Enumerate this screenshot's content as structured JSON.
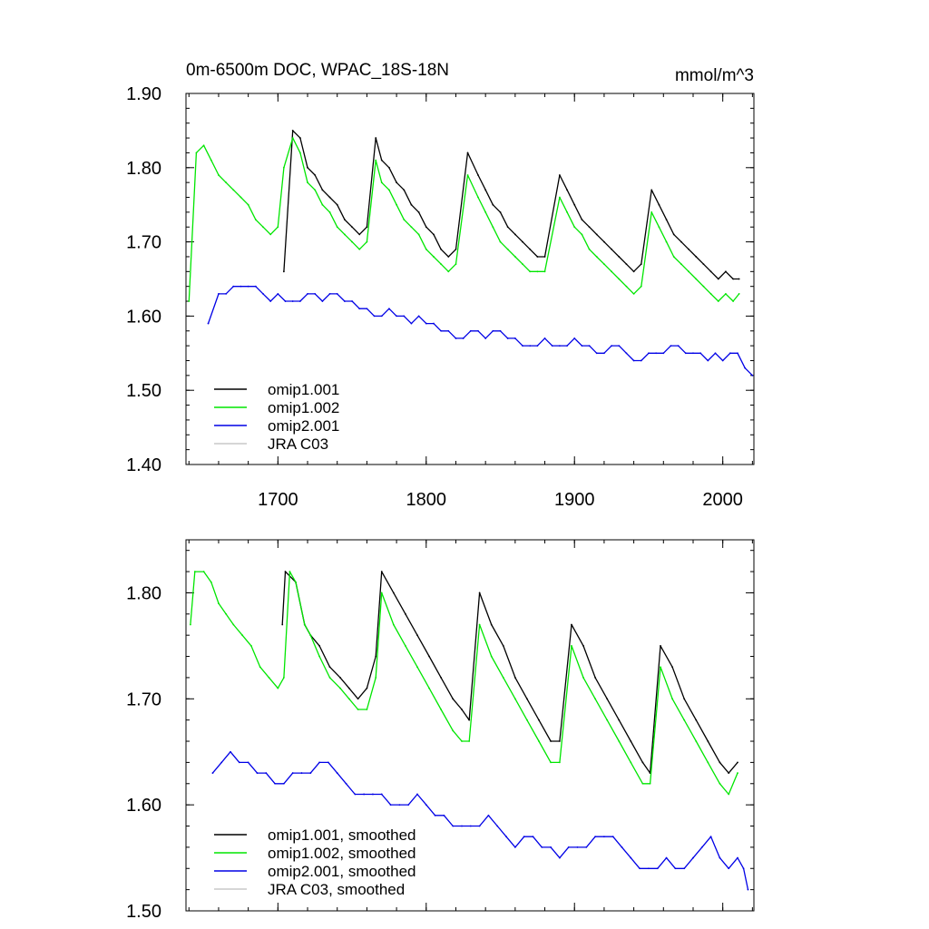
{
  "chart_data": [
    {
      "type": "line",
      "title": "0m-6500m DOC, WPAC_18S-18N",
      "units": "mmol/m^3",
      "xlabel": "",
      "ylabel": "",
      "xlim": [
        1638,
        2021
      ],
      "ylim": [
        1.4,
        1.9
      ],
      "xticks": [
        1700,
        1800,
        1900,
        2000
      ],
      "xtick_labels": [
        "1700",
        "1800",
        "1900",
        "2000"
      ],
      "yticks": [
        1.4,
        1.5,
        1.6,
        1.7,
        1.8,
        1.9
      ],
      "ytick_labels": [
        "1.40",
        "1.50",
        "1.60",
        "1.70",
        "1.80",
        "1.90"
      ],
      "legend_position": "bottom-left",
      "series": [
        {
          "name": "omip1.001",
          "color": "#000000",
          "x": [
            1704,
            1710,
            1715,
            1720,
            1725,
            1730,
            1735,
            1740,
            1745,
            1750,
            1755,
            1760,
            1766,
            1770,
            1775,
            1780,
            1785,
            1790,
            1795,
            1800,
            1805,
            1810,
            1815,
            1820,
            1828,
            1835,
            1840,
            1845,
            1850,
            1855,
            1860,
            1865,
            1870,
            1875,
            1880,
            1890,
            1895,
            1900,
            1905,
            1910,
            1915,
            1920,
            1925,
            1930,
            1935,
            1940,
            1945,
            1952,
            1957,
            1962,
            1967,
            1972,
            1977,
            1982,
            1987,
            1992,
            1997,
            2002,
            2007,
            2011
          ],
          "values": [
            1.66,
            1.85,
            1.84,
            1.8,
            1.79,
            1.77,
            1.76,
            1.75,
            1.73,
            1.72,
            1.71,
            1.72,
            1.84,
            1.81,
            1.8,
            1.78,
            1.77,
            1.75,
            1.74,
            1.72,
            1.71,
            1.69,
            1.68,
            1.69,
            1.82,
            1.79,
            1.77,
            1.75,
            1.74,
            1.72,
            1.71,
            1.7,
            1.69,
            1.68,
            1.68,
            1.79,
            1.77,
            1.75,
            1.73,
            1.72,
            1.71,
            1.7,
            1.69,
            1.68,
            1.67,
            1.66,
            1.67,
            1.77,
            1.75,
            1.73,
            1.71,
            1.7,
            1.69,
            1.68,
            1.67,
            1.66,
            1.65,
            1.66,
            1.65,
            1.65
          ]
        },
        {
          "name": "omip1.002",
          "color": "#00e600",
          "x": [
            1640,
            1645,
            1650,
            1655,
            1660,
            1665,
            1670,
            1675,
            1680,
            1685,
            1690,
            1695,
            1700,
            1704,
            1710,
            1715,
            1720,
            1725,
            1730,
            1735,
            1740,
            1745,
            1750,
            1755,
            1760,
            1766,
            1770,
            1775,
            1780,
            1785,
            1790,
            1795,
            1800,
            1805,
            1810,
            1815,
            1820,
            1828,
            1835,
            1840,
            1845,
            1850,
            1855,
            1860,
            1865,
            1870,
            1875,
            1880,
            1890,
            1895,
            1900,
            1905,
            1910,
            1915,
            1920,
            1925,
            1930,
            1935,
            1940,
            1945,
            1952,
            1957,
            1962,
            1967,
            1972,
            1977,
            1982,
            1987,
            1992,
            1997,
            2002,
            2007,
            2011
          ],
          "values": [
            1.62,
            1.82,
            1.83,
            1.81,
            1.79,
            1.78,
            1.77,
            1.76,
            1.75,
            1.73,
            1.72,
            1.71,
            1.72,
            1.8,
            1.84,
            1.82,
            1.78,
            1.77,
            1.75,
            1.74,
            1.72,
            1.71,
            1.7,
            1.69,
            1.7,
            1.81,
            1.78,
            1.77,
            1.75,
            1.73,
            1.72,
            1.71,
            1.69,
            1.68,
            1.67,
            1.66,
            1.67,
            1.79,
            1.76,
            1.74,
            1.72,
            1.7,
            1.69,
            1.68,
            1.67,
            1.66,
            1.66,
            1.66,
            1.76,
            1.74,
            1.72,
            1.71,
            1.69,
            1.68,
            1.67,
            1.66,
            1.65,
            1.64,
            1.63,
            1.64,
            1.74,
            1.72,
            1.7,
            1.68,
            1.67,
            1.66,
            1.65,
            1.64,
            1.63,
            1.62,
            1.63,
            1.62,
            1.63
          ]
        },
        {
          "name": "omip2.001",
          "color": "#0000e6",
          "x": [
            1653,
            1660,
            1665,
            1670,
            1675,
            1680,
            1685,
            1690,
            1695,
            1700,
            1705,
            1710,
            1715,
            1720,
            1725,
            1730,
            1735,
            1740,
            1745,
            1750,
            1755,
            1760,
            1765,
            1770,
            1775,
            1780,
            1785,
            1790,
            1795,
            1800,
            1805,
            1810,
            1815,
            1820,
            1825,
            1830,
            1835,
            1840,
            1845,
            1850,
            1855,
            1860,
            1865,
            1870,
            1875,
            1880,
            1885,
            1890,
            1895,
            1900,
            1905,
            1910,
            1915,
            1920,
            1925,
            1930,
            1935,
            1940,
            1945,
            1950,
            1955,
            1960,
            1965,
            1970,
            1975,
            1980,
            1985,
            1990,
            1995,
            2000,
            2005,
            2010,
            2015,
            2020
          ],
          "values": [
            1.59,
            1.63,
            1.63,
            1.64,
            1.64,
            1.64,
            1.64,
            1.63,
            1.62,
            1.63,
            1.62,
            1.62,
            1.62,
            1.63,
            1.63,
            1.62,
            1.63,
            1.63,
            1.62,
            1.62,
            1.61,
            1.61,
            1.6,
            1.6,
            1.61,
            1.6,
            1.6,
            1.59,
            1.6,
            1.59,
            1.59,
            1.58,
            1.58,
            1.57,
            1.57,
            1.58,
            1.58,
            1.57,
            1.58,
            1.58,
            1.57,
            1.57,
            1.56,
            1.56,
            1.56,
            1.57,
            1.56,
            1.56,
            1.56,
            1.57,
            1.56,
            1.56,
            1.55,
            1.55,
            1.56,
            1.56,
            1.55,
            1.54,
            1.54,
            1.55,
            1.55,
            1.55,
            1.56,
            1.56,
            1.55,
            1.55,
            1.55,
            1.54,
            1.55,
            1.54,
            1.55,
            1.55,
            1.53,
            1.52
          ]
        },
        {
          "name": "JRA C03",
          "color": "#c8c8c8",
          "x": [],
          "values": []
        }
      ]
    },
    {
      "type": "line",
      "title": "",
      "xlabel": "",
      "ylabel": "",
      "xlim": [
        1638,
        2021
      ],
      "ylim": [
        1.5,
        1.85
      ],
      "xticks": [
        1700,
        1800,
        1900,
        2000
      ],
      "yticks": [
        1.5,
        1.6,
        1.7,
        1.8
      ],
      "ytick_labels": [
        "1.50",
        "1.60",
        "1.70",
        "1.80"
      ],
      "legend_position": "bottom-left",
      "series": [
        {
          "name": "omip1.001, smoothed",
          "color": "#000000",
          "x": [
            1703,
            1705,
            1712,
            1718,
            1722,
            1728,
            1735,
            1742,
            1748,
            1754,
            1760,
            1766,
            1770,
            1778,
            1786,
            1794,
            1802,
            1810,
            1818,
            1824,
            1829,
            1836,
            1844,
            1852,
            1860,
            1868,
            1876,
            1884,
            1890,
            1898,
            1906,
            1914,
            1922,
            1930,
            1938,
            1946,
            1951,
            1958,
            1966,
            1974,
            1982,
            1990,
            1998,
            2004,
            2010
          ],
          "values": [
            1.77,
            1.82,
            1.81,
            1.77,
            1.76,
            1.75,
            1.73,
            1.72,
            1.71,
            1.7,
            1.71,
            1.74,
            1.82,
            1.8,
            1.78,
            1.76,
            1.74,
            1.72,
            1.7,
            1.69,
            1.68,
            1.8,
            1.77,
            1.75,
            1.72,
            1.7,
            1.68,
            1.66,
            1.66,
            1.77,
            1.75,
            1.72,
            1.7,
            1.68,
            1.66,
            1.64,
            1.63,
            1.75,
            1.73,
            1.7,
            1.68,
            1.66,
            1.64,
            1.63,
            1.64
          ]
        },
        {
          "name": "omip1.002, smoothed",
          "color": "#00e600",
          "x": [
            1641,
            1644,
            1650,
            1655,
            1660,
            1665,
            1670,
            1676,
            1682,
            1688,
            1694,
            1700,
            1704,
            1708,
            1712,
            1718,
            1722,
            1728,
            1735,
            1742,
            1748,
            1754,
            1760,
            1766,
            1770,
            1778,
            1786,
            1794,
            1802,
            1810,
            1818,
            1824,
            1829,
            1836,
            1844,
            1852,
            1860,
            1868,
            1876,
            1884,
            1890,
            1898,
            1906,
            1914,
            1922,
            1930,
            1938,
            1946,
            1951,
            1958,
            1966,
            1974,
            1982,
            1990,
            1998,
            2004,
            2010
          ],
          "values": [
            1.77,
            1.82,
            1.82,
            1.81,
            1.79,
            1.78,
            1.77,
            1.76,
            1.75,
            1.73,
            1.72,
            1.71,
            1.72,
            1.82,
            1.81,
            1.77,
            1.76,
            1.74,
            1.72,
            1.71,
            1.7,
            1.69,
            1.69,
            1.72,
            1.8,
            1.77,
            1.75,
            1.73,
            1.71,
            1.69,
            1.67,
            1.66,
            1.66,
            1.77,
            1.74,
            1.72,
            1.7,
            1.68,
            1.66,
            1.64,
            1.64,
            1.75,
            1.72,
            1.7,
            1.68,
            1.66,
            1.64,
            1.62,
            1.62,
            1.73,
            1.7,
            1.68,
            1.66,
            1.64,
            1.62,
            1.61,
            1.63
          ]
        },
        {
          "name": "omip2.001, smoothed",
          "color": "#0000e6",
          "x": [
            1656,
            1662,
            1668,
            1674,
            1680,
            1686,
            1692,
            1698,
            1704,
            1710,
            1716,
            1722,
            1728,
            1734,
            1740,
            1746,
            1752,
            1758,
            1764,
            1770,
            1776,
            1782,
            1788,
            1794,
            1800,
            1806,
            1812,
            1818,
            1824,
            1830,
            1836,
            1842,
            1848,
            1854,
            1860,
            1866,
            1872,
            1878,
            1884,
            1890,
            1896,
            1902,
            1908,
            1914,
            1920,
            1926,
            1932,
            1938,
            1944,
            1950,
            1956,
            1962,
            1968,
            1974,
            1980,
            1986,
            1992,
            1998,
            2004,
            2010,
            2014,
            2017
          ],
          "values": [
            1.63,
            1.64,
            1.65,
            1.64,
            1.64,
            1.63,
            1.63,
            1.62,
            1.62,
            1.63,
            1.63,
            1.63,
            1.64,
            1.64,
            1.63,
            1.62,
            1.61,
            1.61,
            1.61,
            1.61,
            1.6,
            1.6,
            1.6,
            1.61,
            1.6,
            1.59,
            1.59,
            1.58,
            1.58,
            1.58,
            1.58,
            1.59,
            1.58,
            1.57,
            1.56,
            1.57,
            1.57,
            1.56,
            1.56,
            1.55,
            1.56,
            1.56,
            1.56,
            1.57,
            1.57,
            1.57,
            1.56,
            1.55,
            1.54,
            1.54,
            1.54,
            1.55,
            1.54,
            1.54,
            1.55,
            1.56,
            1.57,
            1.55,
            1.54,
            1.55,
            1.54,
            1.52
          ]
        },
        {
          "name": "JRA C03, smoothed",
          "color": "#c8c8c8",
          "x": [],
          "values": []
        }
      ]
    }
  ]
}
